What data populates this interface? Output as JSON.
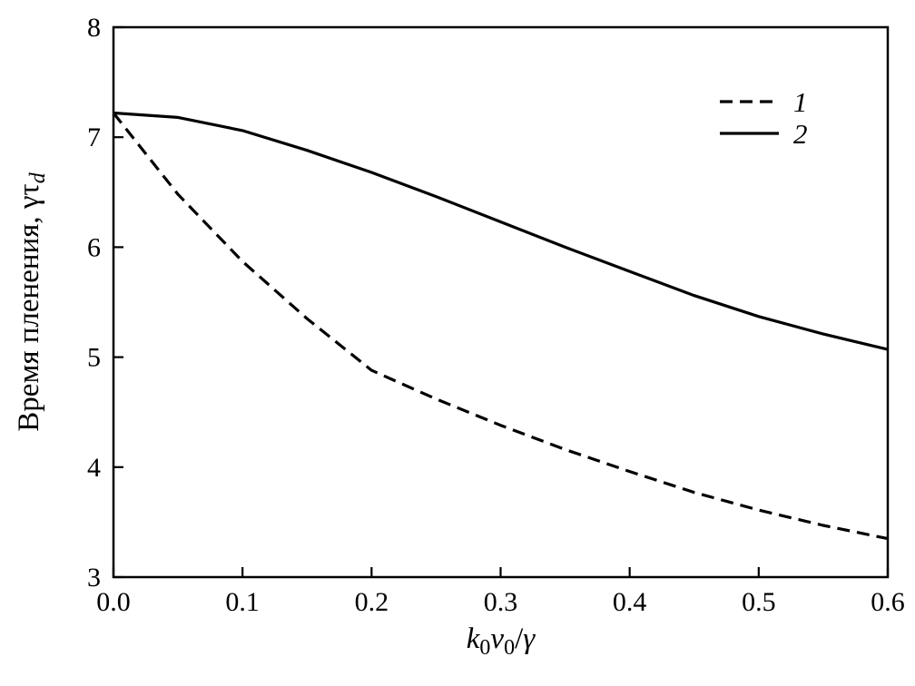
{
  "window": {
    "background": "#ffffff",
    "foreground": "#000000"
  },
  "chart_data": {
    "type": "line",
    "title": "",
    "xlabel": "k₀v₀/γ",
    "ylabel": "Время пленения, γτd",
    "xlabel_parts": [
      {
        "text": "k",
        "style": "italic"
      },
      {
        "text": "0",
        "style": "sub"
      },
      {
        "text": "v",
        "style": "italic"
      },
      {
        "text": "0",
        "style": "sub"
      },
      {
        "text": "/",
        "style": "normal"
      },
      {
        "text": "γ",
        "style": "italic"
      }
    ],
    "ylabel_parts": [
      {
        "text": "Время пленения, γτ",
        "style": "normal"
      },
      {
        "text": "d",
        "style": "sub italic"
      }
    ],
    "xlim": [
      0,
      0.6
    ],
    "ylim": [
      3,
      8
    ],
    "xtick_values": [
      0,
      0.1,
      0.2,
      0.3,
      0.4,
      0.5,
      0.6
    ],
    "xtick_labels": [
      "0.0",
      "0.1",
      "0.2",
      "0.3",
      "0.4",
      "0.5",
      "0.6"
    ],
    "ytick_values": [
      3,
      4,
      5,
      6,
      7,
      8
    ],
    "ytick_labels": [
      "3",
      "4",
      "5",
      "6",
      "7",
      "8"
    ],
    "grid": false,
    "frame": true,
    "line_color": "#000000",
    "legend": {
      "position": "top-right",
      "entries": [
        {
          "label": "1",
          "line_style": "dashed"
        },
        {
          "label": "2",
          "line_style": "solid"
        }
      ]
    },
    "x": [
      0,
      0.05,
      0.1,
      0.15,
      0.2,
      0.25,
      0.3,
      0.35,
      0.4,
      0.45,
      0.5,
      0.55,
      0.6
    ],
    "series": [
      {
        "name": "1",
        "line_style": "dashed",
        "values": [
          7.22,
          6.48,
          5.87,
          5.35,
          4.88,
          4.62,
          4.38,
          4.16,
          3.96,
          3.77,
          3.61,
          3.47,
          3.35
        ]
      },
      {
        "name": "2",
        "line_style": "solid",
        "values": [
          7.22,
          7.18,
          7.06,
          6.88,
          6.68,
          6.46,
          6.23,
          6.0,
          5.78,
          5.56,
          5.37,
          5.21,
          5.07
        ]
      }
    ]
  }
}
